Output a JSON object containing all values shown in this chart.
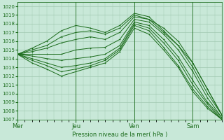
{
  "xlabel": "Pression niveau de la mer( hPa )",
  "ylim": [
    1007,
    1020.5
  ],
  "yticks": [
    1007,
    1008,
    1009,
    1010,
    1011,
    1012,
    1013,
    1014,
    1015,
    1016,
    1017,
    1018,
    1019,
    1020
  ],
  "xtick_labels": [
    "Mer",
    "Jeu",
    "Ven",
    "Sam"
  ],
  "xtick_positions": [
    0,
    48,
    96,
    144
  ],
  "xlim": [
    0,
    168
  ],
  "bg_color": "#c8e8d8",
  "grid_color": "#a0c8b0",
  "line_color": "#1a6b1a",
  "lines": [
    {
      "pts": [
        [
          0,
          1014.5
        ],
        [
          12,
          1015.0
        ],
        [
          24,
          1015.5
        ],
        [
          36,
          1016.5
        ],
        [
          48,
          1017.0
        ],
        [
          60,
          1017.2
        ],
        [
          72,
          1016.8
        ],
        [
          84,
          1017.5
        ],
        [
          96,
          1019.0
        ],
        [
          108,
          1018.5
        ],
        [
          120,
          1017.5
        ],
        [
          132,
          1016.0
        ],
        [
          144,
          1013.5
        ],
        [
          156,
          1010.5
        ],
        [
          168,
          1007.5
        ]
      ]
    },
    {
      "pts": [
        [
          0,
          1014.5
        ],
        [
          12,
          1015.2
        ],
        [
          24,
          1016.0
        ],
        [
          36,
          1017.2
        ],
        [
          48,
          1017.8
        ],
        [
          60,
          1017.5
        ],
        [
          72,
          1017.0
        ],
        [
          84,
          1017.8
        ],
        [
          96,
          1019.2
        ],
        [
          108,
          1018.8
        ],
        [
          120,
          1017.2
        ],
        [
          132,
          1015.5
        ],
        [
          144,
          1013.0
        ],
        [
          156,
          1010.0
        ],
        [
          168,
          1007.5
        ]
      ]
    },
    {
      "pts": [
        [
          0,
          1014.5
        ],
        [
          12,
          1014.8
        ],
        [
          24,
          1015.2
        ],
        [
          36,
          1015.8
        ],
        [
          48,
          1016.2
        ],
        [
          60,
          1016.5
        ],
        [
          72,
          1016.2
        ],
        [
          84,
          1017.0
        ],
        [
          96,
          1018.8
        ],
        [
          108,
          1018.5
        ],
        [
          120,
          1017.0
        ],
        [
          132,
          1015.5
        ],
        [
          144,
          1013.5
        ],
        [
          156,
          1010.5
        ],
        [
          168,
          1007.5
        ]
      ]
    },
    {
      "pts": [
        [
          0,
          1014.5
        ],
        [
          12,
          1014.5
        ],
        [
          24,
          1014.5
        ],
        [
          36,
          1014.5
        ],
        [
          48,
          1015.0
        ],
        [
          60,
          1015.2
        ],
        [
          72,
          1015.3
        ],
        [
          84,
          1016.2
        ],
        [
          96,
          1018.5
        ],
        [
          108,
          1018.2
        ],
        [
          120,
          1016.8
        ],
        [
          132,
          1015.0
        ],
        [
          144,
          1012.5
        ],
        [
          156,
          1009.5
        ],
        [
          168,
          1007.2
        ]
      ]
    },
    {
      "pts": [
        [
          0,
          1014.5
        ],
        [
          12,
          1014.3
        ],
        [
          24,
          1014.0
        ],
        [
          36,
          1013.8
        ],
        [
          48,
          1014.0
        ],
        [
          60,
          1014.2
        ],
        [
          72,
          1014.5
        ],
        [
          84,
          1015.5
        ],
        [
          96,
          1018.2
        ],
        [
          108,
          1017.8
        ],
        [
          120,
          1016.2
        ],
        [
          132,
          1014.2
        ],
        [
          144,
          1011.5
        ],
        [
          156,
          1009.0
        ],
        [
          168,
          1007.2
        ]
      ]
    },
    {
      "pts": [
        [
          0,
          1014.5
        ],
        [
          12,
          1014.0
        ],
        [
          24,
          1013.5
        ],
        [
          36,
          1013.0
        ],
        [
          48,
          1013.2
        ],
        [
          60,
          1013.5
        ],
        [
          72,
          1014.0
        ],
        [
          84,
          1015.2
        ],
        [
          96,
          1018.0
        ],
        [
          108,
          1017.5
        ],
        [
          120,
          1015.8
        ],
        [
          132,
          1013.8
        ],
        [
          144,
          1011.0
        ],
        [
          156,
          1008.8
        ],
        [
          168,
          1007.0
        ]
      ]
    },
    {
      "pts": [
        [
          0,
          1014.5
        ],
        [
          12,
          1013.8
        ],
        [
          24,
          1013.2
        ],
        [
          36,
          1012.5
        ],
        [
          48,
          1012.8
        ],
        [
          60,
          1013.2
        ],
        [
          72,
          1013.8
        ],
        [
          84,
          1015.0
        ],
        [
          96,
          1017.8
        ],
        [
          108,
          1017.2
        ],
        [
          120,
          1015.3
        ],
        [
          132,
          1013.2
        ],
        [
          144,
          1010.5
        ],
        [
          156,
          1008.5
        ],
        [
          168,
          1007.0
        ]
      ]
    },
    {
      "pts": [
        [
          0,
          1014.5
        ],
        [
          12,
          1013.5
        ],
        [
          24,
          1012.8
        ],
        [
          36,
          1012.0
        ],
        [
          48,
          1012.5
        ],
        [
          60,
          1013.0
        ],
        [
          72,
          1013.5
        ],
        [
          84,
          1014.8
        ],
        [
          96,
          1017.5
        ],
        [
          108,
          1016.8
        ],
        [
          120,
          1015.0
        ],
        [
          132,
          1013.0
        ],
        [
          144,
          1010.2
        ],
        [
          156,
          1008.3
        ],
        [
          168,
          1007.0
        ]
      ]
    }
  ]
}
